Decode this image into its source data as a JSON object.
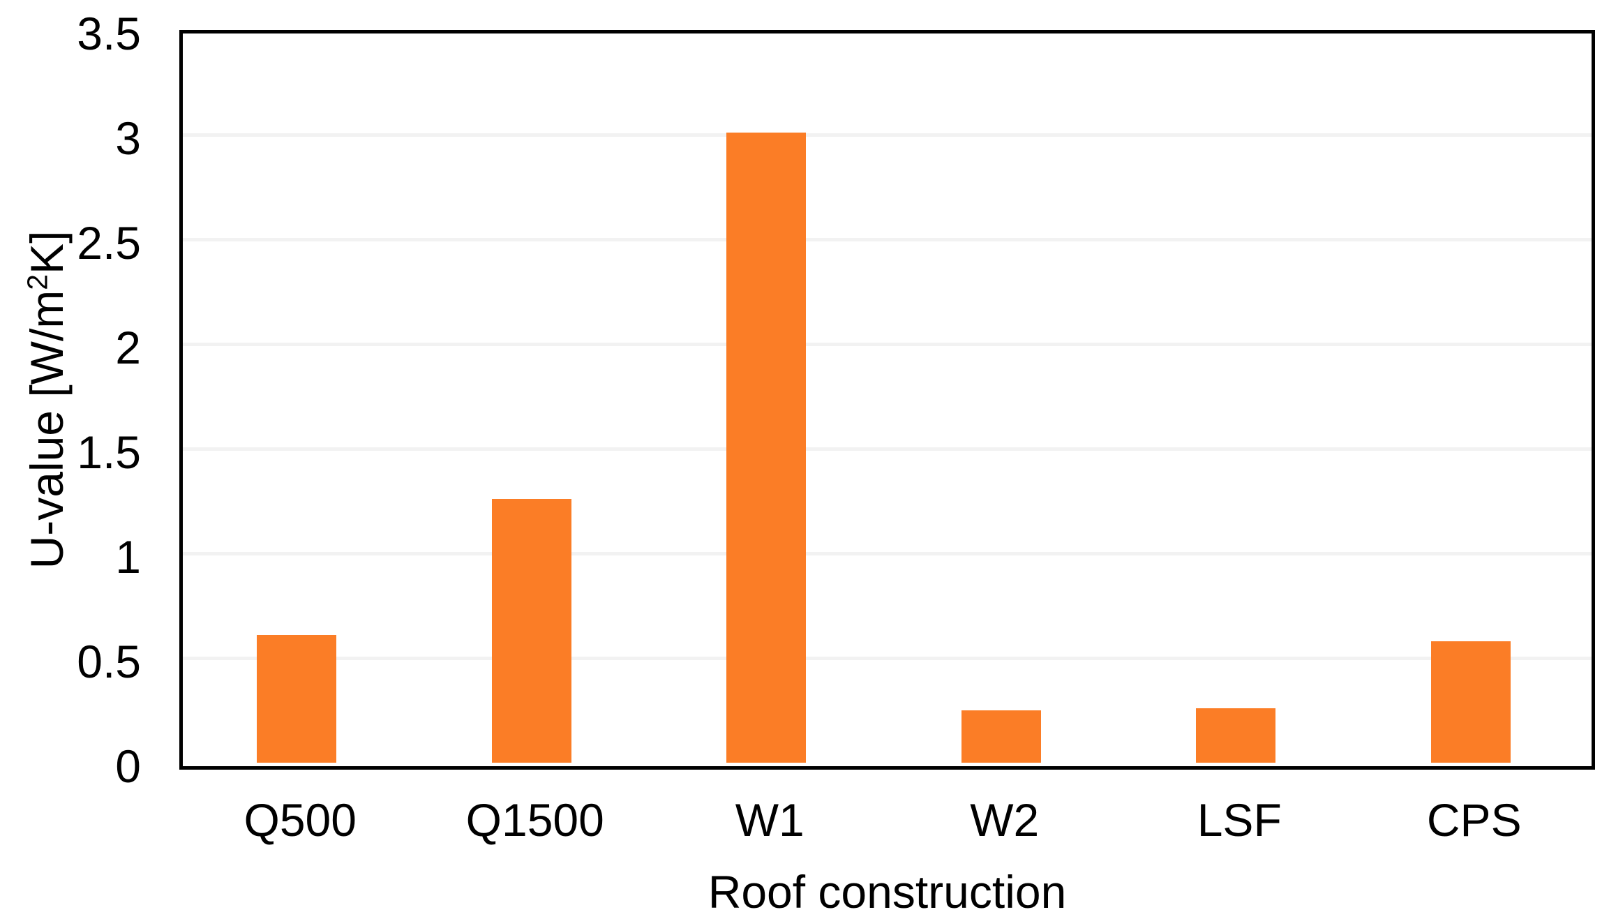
{
  "chart_data": {
    "type": "bar",
    "title": "",
    "categories": [
      "Q500",
      "Q1500",
      "W1",
      "W2",
      "LSF",
      "CPS"
    ],
    "values": [
      0.61,
      1.26,
      3.01,
      0.25,
      0.26,
      0.58
    ],
    "xlabel": "Roof construction",
    "ylabel": "U-value [W/m²K]",
    "ylabel_parts": {
      "prefix": "U-value [W/m",
      "superscript": "2",
      "suffix": "K]"
    },
    "ylim": [
      0,
      3.5
    ],
    "yticks": [
      0,
      0.5,
      1,
      1.5,
      2,
      2.5,
      3,
      3.5
    ],
    "ytick_labels": [
      "0",
      "0.5",
      "1",
      "1.5",
      "2",
      "2.5",
      "3",
      "3.5"
    ],
    "grid": "horizontal-light",
    "legend": "none",
    "colors": {
      "bar": "#FB7D26",
      "gridline": "#F2F2F2",
      "axis": "#000000",
      "text": "#000000",
      "background": "#FFFFFF"
    }
  }
}
